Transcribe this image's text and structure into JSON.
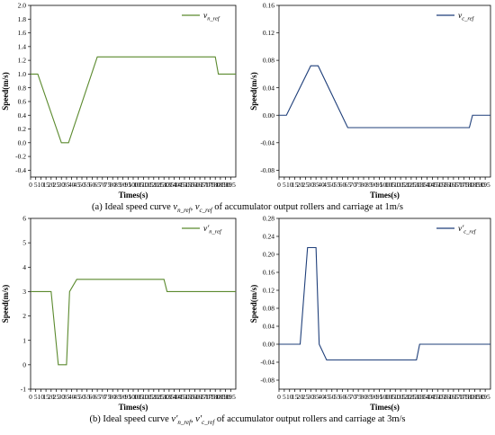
{
  "chart_data": [
    {
      "type": "line",
      "xlabel": "Times(s)",
      "ylabel": "Speed(m/s)",
      "xlim": [
        0,
        200
      ],
      "ylim": [
        -0.5,
        2.0
      ],
      "xticks": [
        0,
        5,
        10,
        15,
        20,
        25,
        30,
        35,
        40,
        45,
        50,
        55,
        60,
        65,
        70,
        75,
        80,
        85,
        90,
        95,
        100,
        105,
        110,
        115,
        120,
        125,
        130,
        135,
        140,
        145,
        150,
        155,
        160,
        165,
        170,
        175,
        180,
        185,
        190,
        195
      ],
      "yticks": [
        "-0.4",
        "-0.2",
        "0.0",
        "0.2",
        "0.4",
        "0.6",
        "0.8",
        "1.0",
        "1.2",
        "1.4",
        "1.6",
        "1.8",
        "2.0"
      ],
      "legend": {
        "position": "top-right",
        "base": "v",
        "sub": "n_ref",
        "prime": false
      },
      "color": "#5b8a2e",
      "x": [
        0,
        7,
        30,
        37,
        65,
        180,
        183,
        200
      ],
      "y": [
        1.0,
        1.0,
        0.0,
        0.0,
        1.25,
        1.25,
        1.0,
        1.0
      ]
    },
    {
      "type": "line",
      "xlabel": "Times(s)",
      "ylabel": "Speed(m/s)",
      "xlim": [
        0,
        200
      ],
      "ylim": [
        -0.09,
        0.16
      ],
      "xticks": [
        0,
        5,
        10,
        15,
        20,
        25,
        30,
        35,
        40,
        45,
        50,
        55,
        60,
        65,
        70,
        75,
        80,
        85,
        90,
        95,
        100,
        105,
        110,
        115,
        120,
        125,
        130,
        135,
        140,
        145,
        150,
        155,
        160,
        165,
        170,
        175,
        180,
        185,
        190,
        195
      ],
      "yticks": [
        "-0.08",
        "-0.04",
        "0.00",
        "0.04",
        "0.08",
        "0.12",
        "0.16"
      ],
      "legend": {
        "position": "top-right",
        "base": "v",
        "sub": "c_ref",
        "prime": false
      },
      "color": "#1f3f7a",
      "x": [
        0,
        7,
        30,
        37,
        65,
        180,
        183,
        200
      ],
      "y": [
        0.0,
        0.0,
        0.072,
        0.072,
        -0.018,
        -0.018,
        0.0,
        0.0
      ]
    },
    {
      "type": "line",
      "xlabel": "Times(s)",
      "ylabel": "Speed(m/s)",
      "xlim": [
        0,
        200
      ],
      "ylim": [
        -1,
        6
      ],
      "xticks": [
        0,
        5,
        10,
        15,
        20,
        25,
        30,
        35,
        40,
        45,
        50,
        55,
        60,
        65,
        70,
        75,
        80,
        85,
        90,
        95,
        100,
        105,
        110,
        115,
        120,
        125,
        130,
        135,
        140,
        145,
        150,
        155,
        160,
        165,
        170,
        175,
        180,
        185,
        190,
        195
      ],
      "yticks": [
        "-1",
        "0",
        "1",
        "2",
        "3",
        "4",
        "5",
        "6"
      ],
      "legend": {
        "position": "top-right",
        "base": "v",
        "sub": "n_ref",
        "prime": true
      },
      "color": "#5b8a2e",
      "x": [
        0,
        20,
        27,
        35,
        38,
        45,
        130,
        133,
        200
      ],
      "y": [
        3.0,
        3.0,
        0.0,
        0.0,
        3.0,
        3.5,
        3.5,
        3.0,
        3.0
      ]
    },
    {
      "type": "line",
      "xlabel": "Times(s)",
      "ylabel": "Speed(m/s)",
      "xlim": [
        0,
        200
      ],
      "ylim": [
        -0.1,
        0.28
      ],
      "xticks": [
        0,
        5,
        10,
        15,
        20,
        25,
        30,
        35,
        40,
        45,
        50,
        55,
        60,
        65,
        70,
        75,
        80,
        85,
        90,
        95,
        100,
        105,
        110,
        115,
        120,
        125,
        130,
        135,
        140,
        145,
        150,
        155,
        160,
        165,
        170,
        175,
        180,
        185,
        190,
        195
      ],
      "yticks": [
        "-0.08",
        "-0.04",
        "0.00",
        "0.04",
        "0.08",
        "0.12",
        "0.16",
        "0.20",
        "0.24",
        "0.28"
      ],
      "legend": {
        "position": "top-right",
        "base": "v",
        "sub": "c_ref",
        "prime": true
      },
      "color": "#1f3f7a",
      "x": [
        0,
        20,
        27,
        35,
        38,
        45,
        130,
        133,
        200
      ],
      "y": [
        0.0,
        0.0,
        0.215,
        0.215,
        0.0,
        -0.035,
        -0.035,
        0.0,
        0.0
      ]
    }
  ],
  "captions": {
    "a": {
      "pre": "(a) Ideal speed curve ",
      "v1": "v",
      "v1sub": "n_ref",
      "sep": ", ",
      "v2": "v",
      "v2sub": "c_ref",
      "post": " of accumulator output rollers and carriage at 1m/s"
    },
    "b": {
      "pre": "(b) Ideal speed curve ",
      "v1": "v′",
      "v1sub": "n_ref",
      "sep": ", ",
      "v2": "v′",
      "v2sub": "c_ref",
      "post": " of accumulator output rollers and carriage at 3m/s"
    }
  }
}
